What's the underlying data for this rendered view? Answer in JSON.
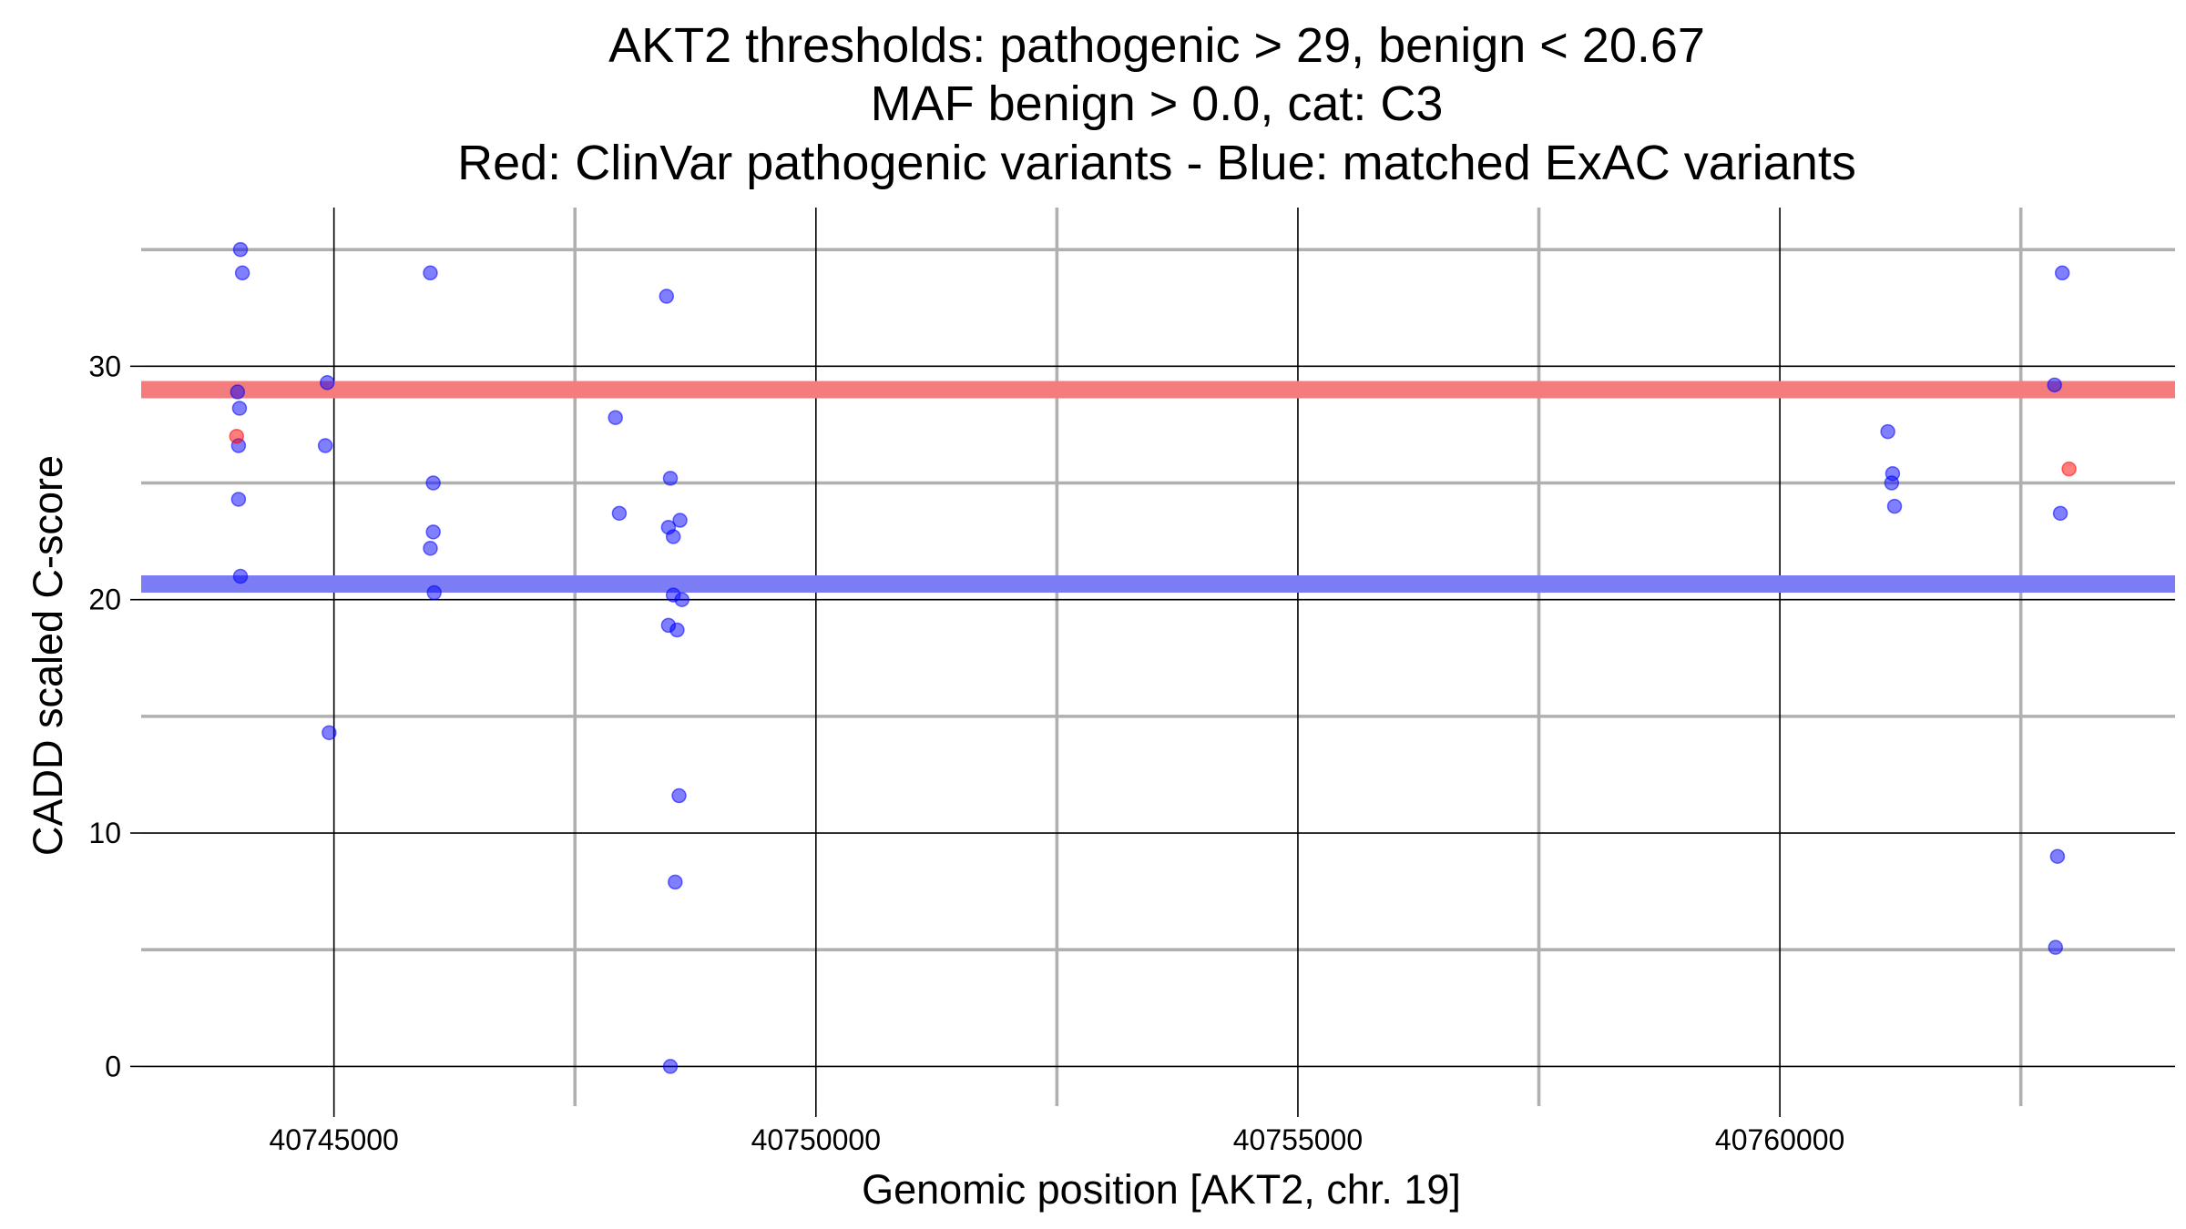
{
  "chart_data": {
    "type": "scatter",
    "title": [
      "AKT2 thresholds: pathogenic > 29, benign < 20.67",
      "MAF benign > 0.0, cat: C3",
      "Red: ClinVar pathogenic variants - Blue: matched ExAC variants"
    ],
    "xlabel": "Genomic position [AKT2, chr. 19]",
    "ylabel": "CADD scaled C-score",
    "xlim": [
      40743000,
      40764100
    ],
    "ylim": [
      -1.7,
      36.8
    ],
    "x_ticks": [
      40745000,
      40750000,
      40755000,
      40760000
    ],
    "x_tick_labels": [
      "40745000",
      "40750000",
      "40755000",
      "40760000"
    ],
    "x_minor_gridlines": [
      40747500,
      40752500,
      40757500,
      40762500
    ],
    "y_ticks": [
      0,
      10,
      20,
      30
    ],
    "y_tick_labels": [
      "0",
      "10",
      "20",
      "30"
    ],
    "y_minor_gridlines": [
      5,
      15,
      25,
      35
    ],
    "grid": true,
    "thresholds": [
      {
        "name": "pathogenic",
        "value": 29,
        "color": "#f47c7c"
      },
      {
        "name": "benign",
        "value": 20.67,
        "color": "#7c7cf4"
      }
    ],
    "series": [
      {
        "color": "#0000ff",
        "points": [
          {
            "x": 40744030,
            "y": 35.0
          },
          {
            "x": 40744050,
            "y": 34.0
          },
          {
            "x": 40744000,
            "y": 28.9
          },
          {
            "x": 40744020,
            "y": 28.2
          },
          {
            "x": 40744010,
            "y": 26.6
          },
          {
            "x": 40744010,
            "y": 24.3
          },
          {
            "x": 40744030,
            "y": 21.0
          },
          {
            "x": 40744930,
            "y": 29.3
          },
          {
            "x": 40744910,
            "y": 26.6
          },
          {
            "x": 40744950,
            "y": 14.3
          },
          {
            "x": 40746000,
            "y": 34.0
          },
          {
            "x": 40746030,
            "y": 25.0
          },
          {
            "x": 40746030,
            "y": 22.9
          },
          {
            "x": 40746000,
            "y": 22.2
          },
          {
            "x": 40746040,
            "y": 20.3
          },
          {
            "x": 40747920,
            "y": 27.8
          },
          {
            "x": 40747960,
            "y": 23.7
          },
          {
            "x": 40748450,
            "y": 33.0
          },
          {
            "x": 40748490,
            "y": 25.2
          },
          {
            "x": 40748590,
            "y": 23.4
          },
          {
            "x": 40748470,
            "y": 23.1
          },
          {
            "x": 40748520,
            "y": 22.7
          },
          {
            "x": 40748520,
            "y": 20.2
          },
          {
            "x": 40748610,
            "y": 20.0
          },
          {
            "x": 40748470,
            "y": 18.9
          },
          {
            "x": 40748560,
            "y": 18.7
          },
          {
            "x": 40748580,
            "y": 11.6
          },
          {
            "x": 40748540,
            "y": 7.9
          },
          {
            "x": 40748490,
            "y": 0.0
          },
          {
            "x": 40761120,
            "y": 27.2
          },
          {
            "x": 40761170,
            "y": 25.4
          },
          {
            "x": 40761160,
            "y": 25.0
          },
          {
            "x": 40761190,
            "y": 24.0
          },
          {
            "x": 40762850,
            "y": 29.2
          },
          {
            "x": 40762930,
            "y": 34.0
          },
          {
            "x": 40762910,
            "y": 23.7
          },
          {
            "x": 40762880,
            "y": 9.0
          },
          {
            "x": 40762860,
            "y": 5.1
          }
        ]
      },
      {
        "color": "#ff0000",
        "points": [
          {
            "x": 40743990,
            "y": 27.0
          },
          {
            "x": 40763000,
            "y": 25.6
          }
        ]
      }
    ]
  }
}
